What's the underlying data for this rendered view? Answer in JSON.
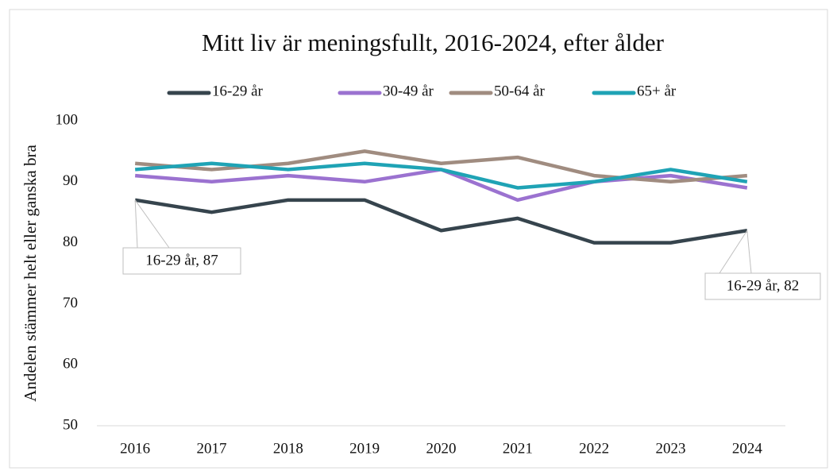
{
  "chart_data": {
    "type": "line",
    "title": "Mitt liv är meningsfullt, 2016-2024, efter ålder",
    "y_label": "Andelen stämmer helt eller ganska bra",
    "categories": [
      "2016",
      "2017",
      "2018",
      "2019",
      "2020",
      "2021",
      "2022",
      "2023",
      "2024"
    ],
    "series": [
      {
        "name": "16-29 år",
        "color": "#36444d",
        "values": [
          87,
          85,
          87,
          87,
          82,
          84,
          80,
          80,
          82
        ],
        "value_labels": [
          "16-29 år, 87",
          null,
          null,
          null,
          null,
          null,
          null,
          null,
          "16-29 år, 82"
        ]
      },
      {
        "name": "30-49 år",
        "color": "#9b72d0",
        "values": [
          91,
          90,
          91,
          90,
          92,
          87,
          90,
          91,
          89
        ]
      },
      {
        "name": "50-64 år",
        "color": "#a08c80",
        "values": [
          93,
          92,
          93,
          95,
          93,
          94,
          91,
          90,
          91
        ]
      },
      {
        "name": "65+ år",
        "color": "#1fa3b5",
        "values": [
          92,
          93,
          92,
          93,
          92,
          89,
          90,
          92,
          90
        ]
      }
    ],
    "ylim": [
      50,
      100
    ],
    "yticks": [
      50,
      60,
      70,
      80,
      90,
      100
    ],
    "grid": false,
    "legend": "top"
  }
}
